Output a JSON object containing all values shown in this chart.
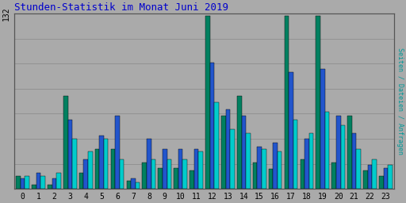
{
  "title": "Stunden-Statistik im Monat Juni 2019",
  "ylabel_right": "Seiten / Dateien / Anfragen",
  "hours": [
    0,
    1,
    2,
    3,
    4,
    5,
    6,
    7,
    8,
    9,
    10,
    11,
    12,
    13,
    14,
    15,
    16,
    17,
    18,
    19,
    20,
    21,
    22,
    23
  ],
  "seiten": [
    10,
    3,
    3,
    70,
    12,
    30,
    30,
    6,
    20,
    16,
    16,
    14,
    130,
    55,
    70,
    20,
    15,
    130,
    22,
    130,
    20,
    55,
    14,
    10
  ],
  "dateien": [
    8,
    12,
    8,
    52,
    22,
    40,
    55,
    8,
    38,
    30,
    30,
    30,
    95,
    60,
    55,
    32,
    35,
    88,
    38,
    90,
    55,
    42,
    18,
    16
  ],
  "anfragen": [
    10,
    10,
    12,
    38,
    28,
    38,
    22,
    5,
    22,
    22,
    22,
    28,
    65,
    45,
    42,
    30,
    28,
    52,
    42,
    58,
    48,
    30,
    22,
    18
  ],
  "color_seiten": "#008060",
  "color_dateien": "#2255cc",
  "color_anfragen": "#00cccc",
  "background": "#aaaaaa",
  "title_color": "#0000cc",
  "ylabel_color": "#009999",
  "ylim": [
    0,
    132
  ],
  "ytick_label": "132",
  "bar_width": 0.28,
  "fig_width": 5.12,
  "fig_height": 2.56,
  "dpi": 100
}
